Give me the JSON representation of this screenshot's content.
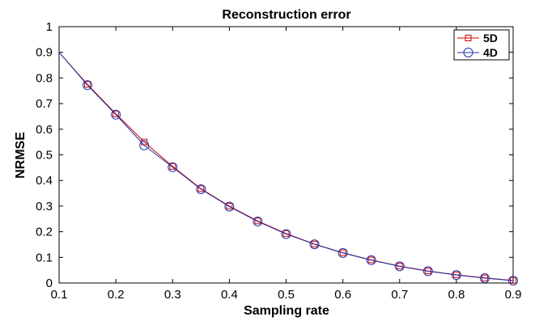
{
  "chart_data": {
    "type": "line",
    "title": "Reconstruction error",
    "xlabel": "Sampling rate",
    "ylabel": "NRMSE",
    "xlim": [
      0.1,
      0.9
    ],
    "ylim": [
      0,
      1
    ],
    "xticks": [
      "0.1",
      "0.2",
      "0.3",
      "0.4",
      "0.5",
      "0.6",
      "0.7",
      "0.8",
      "0.9"
    ],
    "yticks": [
      "0",
      "0.1",
      "0.2",
      "0.3",
      "0.4",
      "0.5",
      "0.6",
      "0.7",
      "0.8",
      "0.9",
      "1"
    ],
    "grid": false,
    "legend_position": "top-right",
    "x": [
      0.1,
      0.15,
      0.2,
      0.25,
      0.3,
      0.35,
      0.4,
      0.45,
      0.5,
      0.55,
      0.6,
      0.65,
      0.7,
      0.75,
      0.8,
      0.85,
      0.9
    ],
    "series": [
      {
        "name": "5D",
        "color": "#cc0000",
        "marker": "square",
        "values": [
          0.9,
          0.775,
          0.66,
          0.55,
          0.455,
          0.368,
          0.3,
          0.242,
          0.193,
          0.152,
          0.118,
          0.09,
          0.066,
          0.047,
          0.032,
          0.02,
          0.01
        ]
      },
      {
        "name": "4D",
        "color": "#2233aa",
        "marker": "circle",
        "values": [
          0.9,
          0.772,
          0.657,
          0.537,
          0.452,
          0.366,
          0.298,
          0.24,
          0.191,
          0.151,
          0.117,
          0.089,
          0.065,
          0.046,
          0.031,
          0.019,
          0.009
        ]
      }
    ]
  }
}
